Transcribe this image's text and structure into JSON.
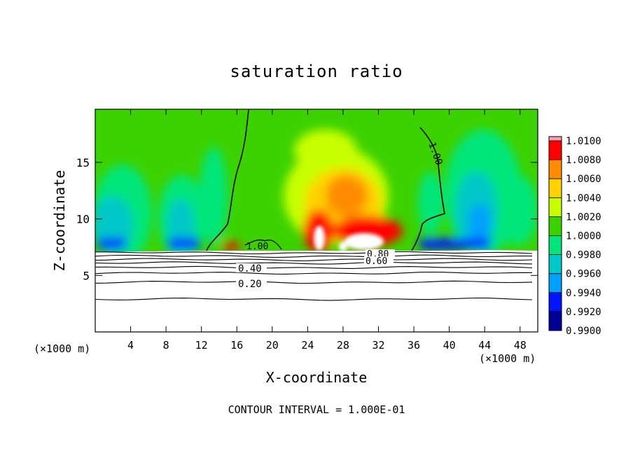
{
  "chart_data": {
    "type": "heatmap",
    "title": "saturation ratio",
    "xlabel": "X-coordinate",
    "ylabel": "Z-coordinate",
    "x_unit_label_left": "(×1000 m)",
    "x_unit_label_right": "(×1000 m)",
    "xlim": [
      0,
      50
    ],
    "ylim": [
      0,
      19.7
    ],
    "x_ticks": [
      4,
      8,
      12,
      16,
      20,
      24,
      28,
      32,
      36,
      40,
      44,
      48
    ],
    "y_ticks": [
      5,
      10,
      15
    ],
    "footer": "CONTOUR INTERVAL = 1.000E-01",
    "colorbar": {
      "levels": [
        1.01,
        1.008,
        1.006,
        1.004,
        1.002,
        1.0,
        0.998,
        0.996,
        0.994,
        0.992,
        0.99
      ],
      "labels": [
        "1.0100",
        "1.0080",
        "1.0060",
        "1.0040",
        "1.0020",
        "1.0000",
        "0.9980",
        "0.9960",
        "0.9940",
        "0.9920",
        "0.9900"
      ],
      "colors": [
        "#ff0000",
        "#ff8c00",
        "#ffd200",
        "#c8ff00",
        "#3cd200",
        "#00e67a",
        "#00c8c8",
        "#00a0ff",
        "#0014ff",
        "#000096",
        "#6a0096"
      ],
      "top_color": "#f2a0b4"
    },
    "contour_labels": [
      "1.00",
      "1.00",
      "0.80",
      "0.60",
      "0.40",
      "0.20"
    ],
    "cloud_base_z": 7.3,
    "contour_lines_z": [
      2.9,
      4.4,
      5.2,
      5.7,
      6.1,
      6.4,
      6.7,
      7.0
    ]
  }
}
